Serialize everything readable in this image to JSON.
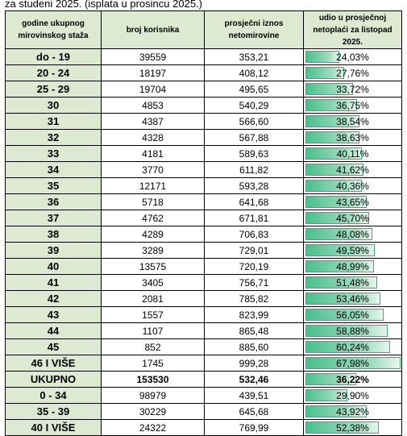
{
  "caption": "za studeni 2025. (isplata u prosincu 2025.)",
  "headers": {
    "col1": "godine ukupnog mirovinskog staža",
    "col2": "broj korisnika",
    "col3": "prosječni iznos netomirovine",
    "col4": "udio u prosječnoj netoplaći za listopad 2025."
  },
  "rows": [
    {
      "label": "do - 19",
      "users": "39559",
      "amount": "353,21",
      "share": "24,03%",
      "share_value": 24.03
    },
    {
      "label": "20 - 24",
      "users": "18197",
      "amount": "408,12",
      "share": "27,76%",
      "share_value": 27.76
    },
    {
      "label": "25 - 29",
      "users": "19704",
      "amount": "495,65",
      "share": "33,72%",
      "share_value": 33.72
    },
    {
      "label": "30",
      "users": "4853",
      "amount": "540,29",
      "share": "36,75%",
      "share_value": 36.75
    },
    {
      "label": "31",
      "users": "4387",
      "amount": "566,60",
      "share": "38,54%",
      "share_value": 38.54
    },
    {
      "label": "32",
      "users": "4328",
      "amount": "567,88",
      "share": "38,63%",
      "share_value": 38.63
    },
    {
      "label": "33",
      "users": "4181",
      "amount": "589,63",
      "share": "40,11%",
      "share_value": 40.11
    },
    {
      "label": "34",
      "users": "3770",
      "amount": "611,82",
      "share": "41,62%",
      "share_value": 41.62
    },
    {
      "label": "35",
      "users": "12171",
      "amount": "593,28",
      "share": "40,36%",
      "share_value": 40.36
    },
    {
      "label": "36",
      "users": "5718",
      "amount": "641,68",
      "share": "43,65%",
      "share_value": 43.65
    },
    {
      "label": "37",
      "users": "4762",
      "amount": "671,81",
      "share": "45,70%",
      "share_value": 45.7
    },
    {
      "label": "38",
      "users": "4289",
      "amount": "706,83",
      "share": "48,08%",
      "share_value": 48.08
    },
    {
      "label": "39",
      "users": "3289",
      "amount": "729,01",
      "share": "49,59%",
      "share_value": 49.59
    },
    {
      "label": "40",
      "users": "13575",
      "amount": "720,19",
      "share": "48,99%",
      "share_value": 48.99
    },
    {
      "label": "41",
      "users": "3405",
      "amount": "756,71",
      "share": "51,48%",
      "share_value": 51.48
    },
    {
      "label": "42",
      "users": "2081",
      "amount": "785,82",
      "share": "53,46%",
      "share_value": 53.46
    },
    {
      "label": "43",
      "users": "1557",
      "amount": "823,99",
      "share": "56,05%",
      "share_value": 56.05
    },
    {
      "label": "44",
      "users": "1107",
      "amount": "865,48",
      "share": "58,88%",
      "share_value": 58.88
    },
    {
      "label": "45",
      "users": "852",
      "amount": "885,60",
      "share": "60,24%",
      "share_value": 60.24
    },
    {
      "label": "46 I VIŠE",
      "users": "1745",
      "amount": "999,28",
      "share": "67,98%",
      "share_value": 67.98
    },
    {
      "label": "UKUPNO",
      "users": "153530",
      "amount": "532,46",
      "share": "36,22%",
      "share_value": 36.22,
      "total": true
    },
    {
      "label": "0 - 34",
      "users": "98979",
      "amount": "439,51",
      "share": "29,90%",
      "share_value": 29.9
    },
    {
      "label": "35 - 39",
      "users": "30229",
      "amount": "645,68",
      "share": "43,92%",
      "share_value": 43.92
    },
    {
      "label": "40 I VIŠE",
      "users": "24322",
      "amount": "769,99",
      "share": "52,38%",
      "share_value": 52.38
    }
  ],
  "bar_scale_max": 67.98,
  "colors": {
    "header_bg": "#dde9d0",
    "bar": "#4bbf8e"
  }
}
